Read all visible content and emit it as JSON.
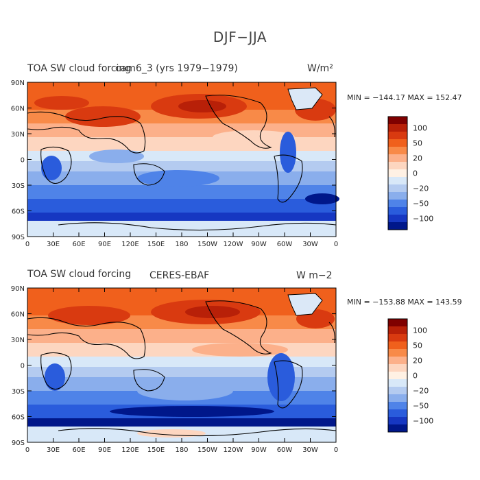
{
  "figure": {
    "title": "DJF−JJA"
  },
  "palette": {
    "levels": [
      ">110",
      "100",
      "80",
      "50",
      "30",
      "20",
      "10",
      "0",
      "-10",
      "-20",
      "-30",
      "-50",
      "-80",
      "-100",
      "<-110"
    ],
    "colors": [
      "#7f0000",
      "#b82008",
      "#d93a10",
      "#f0601c",
      "#f88a48",
      "#fcb08a",
      "#fdd6c0",
      "#fff1e4",
      "#d8e8f8",
      "#b4cbf0",
      "#8aaeec",
      "#4f83e8",
      "#2a5cdc",
      "#1637c2",
      "#00178a"
    ],
    "land_outline": "#000000",
    "ice_color": "#dbe8f7"
  },
  "axes": {
    "x_ticks": [
      "0",
      "30E",
      "60E",
      "90E",
      "120E",
      "150E",
      "180",
      "150W",
      "120W",
      "90W",
      "60W",
      "30W",
      "0"
    ],
    "y_ticks": [
      "90N",
      "60N",
      "30N",
      "0",
      "30S",
      "60S",
      "90S"
    ]
  },
  "panels": [
    {
      "left_title": "TOA SW cloud forcing",
      "center_title": "cam6_3 (yrs 1979−1979)",
      "units": "W/m²",
      "stats": "MIN = −144.17  MAX = 152.47",
      "stats_min": -144.17,
      "stats_max": 152.47,
      "colorbar_labels": [
        "100",
        "50",
        "20",
        "0",
        "−20",
        "−50",
        "−100"
      ]
    },
    {
      "left_title": "TOA SW cloud forcing",
      "center_title": "CERES-EBAF",
      "units": "W m−2",
      "stats": "MIN = −153.88  MAX = 143.59",
      "stats_min": -153.88,
      "stats_max": 143.59,
      "colorbar_labels": [
        "100",
        "50",
        "20",
        "0",
        "−20",
        "−50",
        "−100"
      ]
    }
  ]
}
